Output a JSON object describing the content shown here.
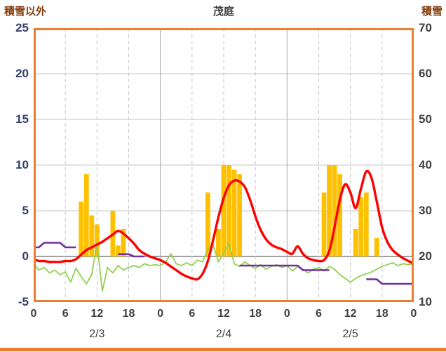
{
  "chart_data": {
    "type": "combo (bar + line, dual axis time series)",
    "titles": {
      "left": "積雪以外",
      "center": "茂庭",
      "right": "積雪"
    },
    "x_axis": {
      "unit": "hour",
      "range_hours": [
        0,
        72
      ],
      "tick_hours": [
        0,
        6,
        12,
        18,
        24,
        30,
        36,
        42,
        48,
        54,
        60,
        66,
        72
      ],
      "tick_labels": [
        "0",
        "6",
        "12",
        "18",
        "0",
        "6",
        "12",
        "18",
        "0",
        "6",
        "12",
        "18",
        "0"
      ],
      "day_boundary_hours": [
        24,
        48
      ],
      "date_labels": [
        {
          "label": "2/3",
          "hour": 12
        },
        {
          "label": "2/4",
          "hour": 36
        },
        {
          "label": "2/5",
          "hour": 60
        }
      ]
    },
    "left_axis": {
      "min": -5,
      "max": 25,
      "ticks": [
        25,
        20,
        15,
        10,
        5,
        0,
        -5
      ]
    },
    "right_axis": {
      "min": 10,
      "max": 70,
      "ticks": [
        70,
        60,
        50,
        40,
        30,
        20,
        10
      ]
    },
    "grid": {
      "horizontal": "solid",
      "vertical_6h": "dashed",
      "vertical_day": "solid"
    },
    "legend": "none",
    "colors": {
      "frame": "#ED7D31",
      "bars": "#FFC000",
      "red_line": "#FF0000",
      "green_line": "#92D050",
      "purple_line": "#7030A0",
      "grid": "#C6C6C6",
      "grid_solid": "#A6A6A6",
      "zero_line": "#808080",
      "left_text": "#333F6B",
      "text": "#404040",
      "title_brown": "#843C0C"
    },
    "series": [
      {
        "name": "precip-bars",
        "type": "bar",
        "axis": "left",
        "color": "#FFC000",
        "values": [
          0,
          0,
          0,
          0,
          0,
          0,
          0,
          0,
          0,
          6,
          9,
          4.5,
          3.5,
          0,
          0,
          5,
          1.2,
          3,
          0,
          0,
          0,
          0,
          0,
          0,
          0,
          0,
          0,
          0,
          0,
          0,
          0,
          0,
          0,
          7,
          0,
          3,
          10,
          10,
          9.5,
          9,
          0,
          0,
          0,
          0,
          0,
          0,
          0,
          0,
          0,
          0,
          0,
          0,
          0,
          0,
          0,
          7,
          10,
          10,
          9,
          0,
          0,
          3,
          6.5,
          7,
          0,
          2,
          0,
          0,
          0,
          0,
          0,
          0,
          0
        ]
      },
      {
        "name": "green-line",
        "type": "line",
        "axis": "left",
        "color": "#92D050",
        "values": [
          -0.8,
          -1.5,
          -1.2,
          -1.8,
          -1.5,
          -2.0,
          -1.7,
          -2.8,
          -1.3,
          -2.2,
          -3.0,
          -2.0,
          1.5,
          -3.8,
          -1.2,
          -1.8,
          -1.0,
          -1.5,
          -1.2,
          -1.0,
          -1.2,
          -0.8,
          -1.0,
          -0.9,
          -1.0,
          -0.6,
          0.3,
          -0.8,
          -1.0,
          -0.7,
          -1.0,
          -0.4,
          -0.6,
          0.8,
          1.3,
          -0.6,
          0.4,
          1.4,
          -0.8,
          -1.1,
          -0.6,
          -1.0,
          -1.3,
          -0.9,
          -1.4,
          -1.1,
          -0.9,
          -1.2,
          -1.0,
          -1.6,
          -1.1,
          -1.4,
          -1.8,
          -1.4,
          -1.2,
          -1.6,
          -1.1,
          -1.4,
          -2.0,
          -2.4,
          -2.8,
          -2.4,
          -2.1,
          -1.9,
          -1.7,
          -1.4,
          -1.1,
          -0.9,
          -0.7,
          -1.0,
          -0.8,
          -0.9,
          -0.8
        ]
      },
      {
        "name": "snow-depth-purple",
        "type": "step-line",
        "axis": "right",
        "color": "#7030A0",
        "values": [
          22,
          22,
          23,
          23,
          23,
          23,
          22,
          22,
          22,
          null,
          null,
          null,
          null,
          null,
          null,
          null,
          20.5,
          20.5,
          20.5,
          20,
          20,
          20,
          null,
          null,
          null,
          null,
          null,
          null,
          null,
          null,
          null,
          null,
          null,
          null,
          null,
          null,
          null,
          null,
          null,
          18,
          18,
          18,
          18,
          18,
          18,
          18,
          18,
          18,
          18,
          18,
          18,
          17,
          17,
          17,
          17,
          17,
          17,
          null,
          null,
          null,
          null,
          null,
          null,
          15,
          15,
          15,
          14,
          14,
          14,
          14,
          14,
          14,
          14
        ]
      },
      {
        "name": "red-line",
        "type": "smooth-line",
        "axis": "left",
        "color": "#FF0000",
        "values": [
          -0.3,
          -0.5,
          -0.5,
          -0.6,
          -0.6,
          -0.6,
          -0.5,
          -0.5,
          -0.3,
          0.2,
          0.7,
          1.0,
          1.3,
          1.6,
          2.0,
          2.4,
          2.8,
          2.5,
          2.0,
          1.4,
          0.7,
          0.3,
          0.0,
          -0.2,
          -0.4,
          -0.7,
          -1.1,
          -1.5,
          -1.9,
          -2.2,
          -2.4,
          -2.5,
          -1.9,
          -0.5,
          1.8,
          4.3,
          6.4,
          7.8,
          8.3,
          8.2,
          7.6,
          6.2,
          4.4,
          2.9,
          1.9,
          1.3,
          1.0,
          0.8,
          0.5,
          0.3,
          1.1,
          0.3,
          -0.2,
          -0.4,
          -0.5,
          -0.4,
          0.6,
          3.2,
          6.2,
          7.9,
          7.0,
          5.3,
          7.4,
          9.3,
          8.6,
          6.0,
          3.2,
          1.6,
          0.7,
          0.2,
          -0.2,
          -0.5,
          -0.8
        ]
      }
    ]
  }
}
